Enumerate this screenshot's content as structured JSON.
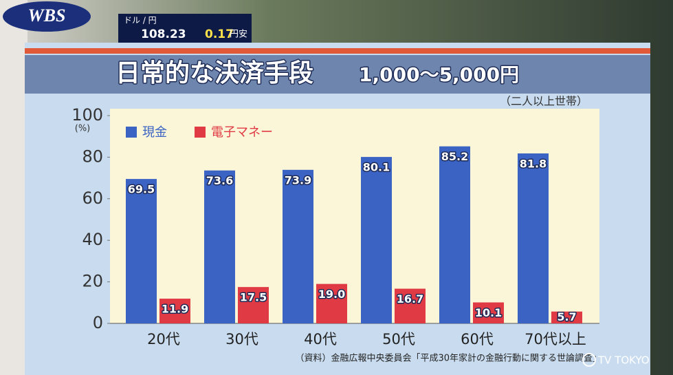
{
  "chart_data": {
    "type": "bar",
    "title": "日常的な決済手段",
    "subtitle": "1,000〜5,000円",
    "note": "（二人以上世帯）",
    "y_unit": "(%)",
    "source": "（資料）金融広報中央委員会「平成30年家計の金融行動に関する世論調査」",
    "categories": [
      "20代",
      "30代",
      "40代",
      "50代",
      "60代",
      "70代以上"
    ],
    "series": [
      {
        "name": "現金",
        "color": "#3b63c4",
        "values": [
          69.5,
          73.6,
          73.9,
          80.1,
          85.2,
          81.8
        ]
      },
      {
        "name": "電子マネー",
        "color": "#e03a45",
        "values": [
          11.9,
          17.5,
          19.0,
          16.7,
          10.1,
          5.7
        ],
        "value_labels": [
          "11.9",
          "17.5",
          "19.0",
          "16.7",
          "10.1",
          "5.7"
        ]
      }
    ],
    "ylim": [
      0,
      100
    ],
    "yticks": [
      0,
      20,
      40,
      60,
      80,
      100
    ],
    "grid": false,
    "legend": "top-left"
  },
  "overlay": {
    "logo": "WBS",
    "ticker_label": "ドル / 円",
    "ticker_value": "108.23",
    "ticker_change": "0.17",
    "ticker_direction": "円安",
    "channel": "TV TOKYO"
  }
}
